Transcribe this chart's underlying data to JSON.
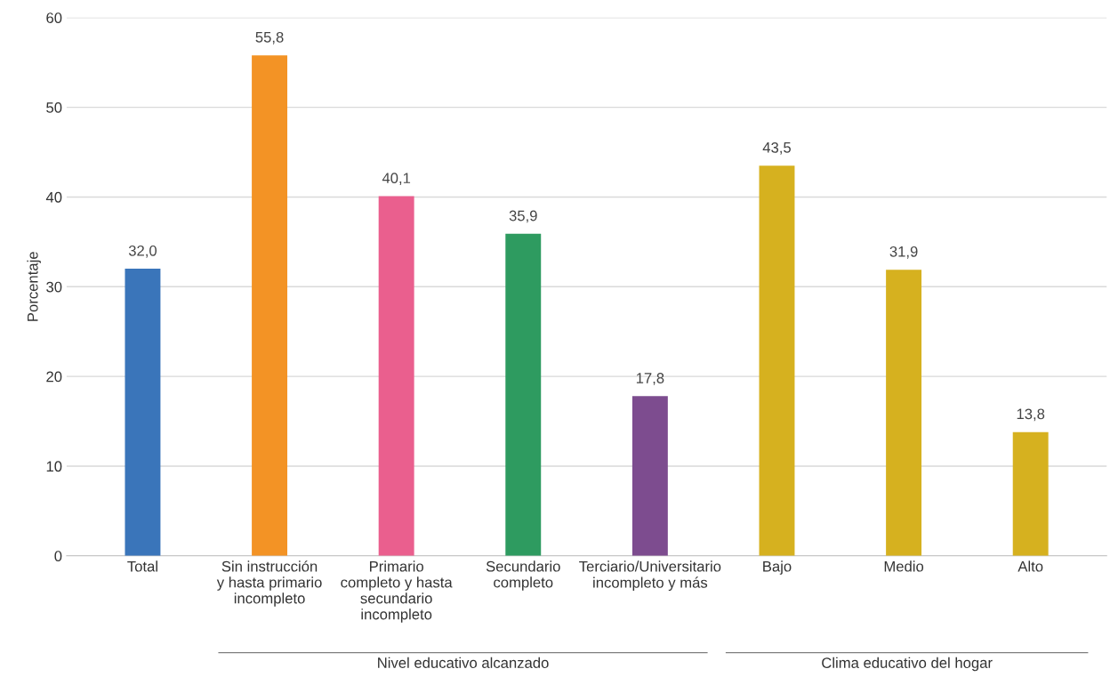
{
  "chart_data": {
    "type": "bar",
    "ylabel": "Porcentaje",
    "categories": [
      "Total",
      "Sin instrucción\ny hasta primario\nincompleto",
      "Primario\ncompleto y hasta\nsecundario\nincompleto",
      "Secundario\ncompleto",
      "Terciario/Universitario\nincompleto y más",
      "Bajo",
      "Medio",
      "Alto"
    ],
    "values": [
      32.0,
      55.8,
      40.1,
      35.9,
      17.8,
      43.5,
      31.9,
      13.8
    ],
    "colors": [
      "#3a75ba",
      "#f39325",
      "#ea5f8e",
      "#2e9b60",
      "#7d4c8f",
      "#d6b11f",
      "#d6b11f",
      "#d6b11f"
    ],
    "ylim": [
      0,
      60
    ],
    "yticks": [
      0,
      10,
      20,
      30,
      40,
      50,
      60
    ],
    "grid": "y",
    "value_labels": [
      "32,0",
      "55,8",
      "40,1",
      "35,9",
      "17,8",
      "43,5",
      "31,9",
      "13,8"
    ],
    "annotations": [
      "Nivel educativo alcanzado",
      "Clima educativo del hogar"
    ]
  }
}
